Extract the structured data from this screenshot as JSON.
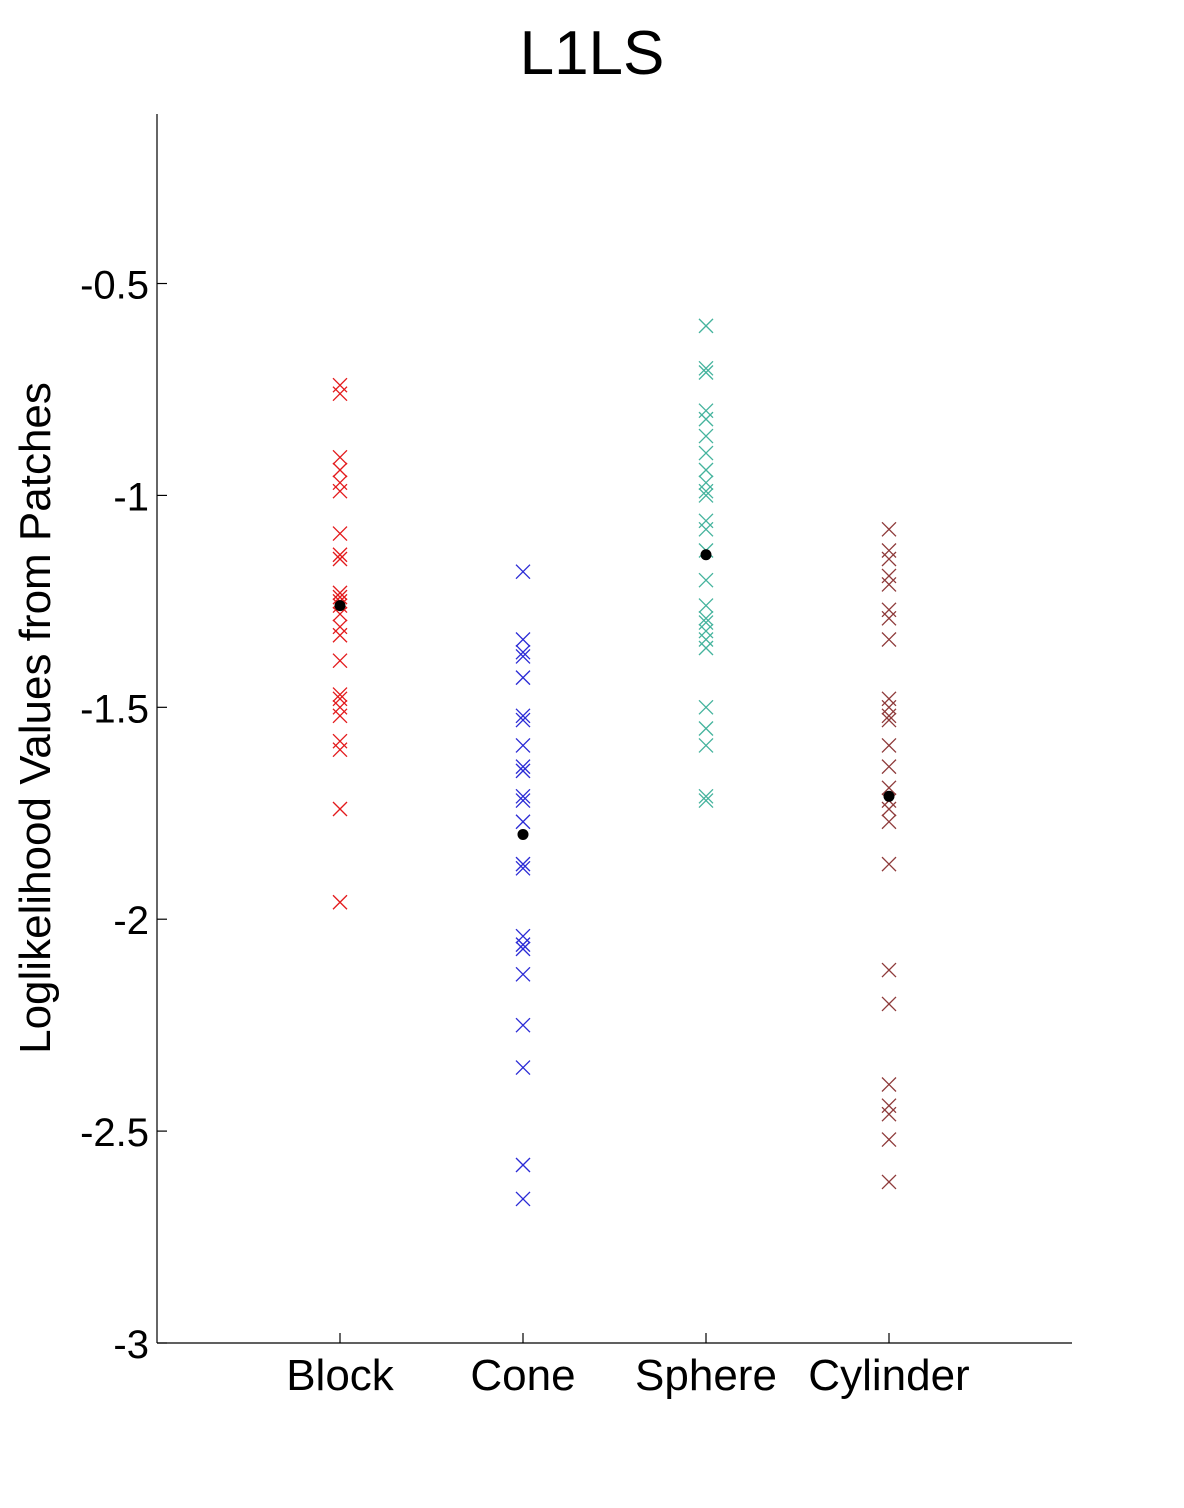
{
  "chart_data": {
    "type": "scatter",
    "title": "L1LS",
    "ylabel": "Loglikelihood Values from Patches",
    "xlabel": "",
    "categories": [
      "Block",
      "Cone",
      "Sphere",
      "Cylinder"
    ],
    "ylim": [
      -3,
      -0.1
    ],
    "yticks": [
      -3,
      -2.5,
      -2,
      -1.5,
      -1,
      -0.5
    ],
    "ytick_labels": [
      "-3",
      "-2.5",
      "-2",
      "-1.5",
      "-1",
      "-0.5"
    ],
    "grid": false,
    "marker": "x",
    "mean_marker": "filled-circle",
    "mean_color": "#000000",
    "series": [
      {
        "category": "Block",
        "color": "#e31a1c",
        "values": [
          -0.74,
          -0.76,
          -0.91,
          -0.94,
          -0.97,
          -0.99,
          -1.09,
          -1.14,
          -1.15,
          -1.23,
          -1.24,
          -1.25,
          -1.26,
          -1.28,
          -1.31,
          -1.33,
          -1.39,
          -1.47,
          -1.48,
          -1.5,
          -1.52,
          -1.58,
          -1.6,
          -1.74,
          -1.96
        ],
        "mean": -1.26
      },
      {
        "category": "Cone",
        "color": "#2b2bd6",
        "values": [
          -1.18,
          -1.34,
          -1.37,
          -1.38,
          -1.43,
          -1.52,
          -1.53,
          -1.59,
          -1.64,
          -1.65,
          -1.71,
          -1.72,
          -1.77,
          -1.87,
          -1.88,
          -2.04,
          -2.06,
          -2.07,
          -2.13,
          -2.25,
          -2.35,
          -2.58,
          -2.66
        ],
        "mean": -1.8
      },
      {
        "category": "Sphere",
        "color": "#45b39d",
        "values": [
          -0.6,
          -0.7,
          -0.71,
          -0.8,
          -0.82,
          -0.86,
          -0.9,
          -0.94,
          -0.97,
          -0.99,
          -1.0,
          -1.06,
          -1.08,
          -1.13,
          -1.2,
          -1.26,
          -1.29,
          -1.3,
          -1.32,
          -1.34,
          -1.36,
          -1.5,
          -1.55,
          -1.59,
          -1.71,
          -1.72
        ],
        "mean": -1.14
      },
      {
        "category": "Cylinder",
        "color": "#8e3a3a",
        "values": [
          -1.08,
          -1.13,
          -1.15,
          -1.19,
          -1.21,
          -1.27,
          -1.29,
          -1.34,
          -1.48,
          -1.5,
          -1.52,
          -1.53,
          -1.59,
          -1.64,
          -1.69,
          -1.72,
          -1.74,
          -1.77,
          -1.87,
          -2.12,
          -2.2,
          -2.39,
          -2.44,
          -2.46,
          -2.52,
          -2.62
        ],
        "mean": -1.71
      }
    ]
  }
}
